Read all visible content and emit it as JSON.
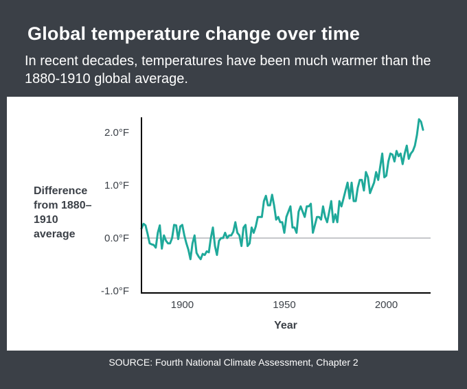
{
  "header": {
    "title": "Global temperature change over time",
    "subtitle": "In recent decades, temperatures have been much warmer than the 1880-1910 global average."
  },
  "footer": {
    "source": "SOURCE: Fourth National Climate Assessment, Chapter 2"
  },
  "colors": {
    "background": "#3b4047",
    "panel": "#ffffff",
    "line": "#1fa99a",
    "baseline": "#c5c7ca",
    "axis": "#000000"
  },
  "chart_data": {
    "type": "line",
    "ylabel": "Difference from 1880–1910 average",
    "xlabel": "Year",
    "xlim": [
      1880,
      2019
    ],
    "ylim": [
      -1.0,
      2.2
    ],
    "x_ticks": [
      {
        "value": 1900,
        "label": "1900"
      },
      {
        "value": 1950,
        "label": "1950"
      },
      {
        "value": 2000,
        "label": "2000"
      }
    ],
    "y_ticks": [
      {
        "value": 2.0,
        "label": "2.0°F"
      },
      {
        "value": 1.0,
        "label": "1.0°F"
      },
      {
        "value": 0.0,
        "label": "0.0°F"
      },
      {
        "value": -1.0,
        "label": "-1.0°F"
      }
    ],
    "baseline": 0.0,
    "grid": false,
    "series": [
      {
        "x": [
          1880,
          1881,
          1882,
          1883,
          1884,
          1885,
          1886,
          1887,
          1888,
          1889,
          1890,
          1891,
          1892,
          1893,
          1894,
          1895,
          1896,
          1897,
          1898,
          1899,
          1900,
          1901,
          1902,
          1903,
          1904,
          1905,
          1906,
          1907,
          1908,
          1909,
          1910,
          1911,
          1912,
          1913,
          1914,
          1915,
          1916,
          1917,
          1918,
          1919,
          1920,
          1921,
          1922,
          1923,
          1924,
          1925,
          1926,
          1927,
          1928,
          1929,
          1930,
          1931,
          1932,
          1933,
          1934,
          1935,
          1936,
          1937,
          1938,
          1939,
          1940,
          1941,
          1942,
          1943,
          1944,
          1945,
          1946,
          1947,
          1948,
          1949,
          1950,
          1951,
          1952,
          1953,
          1954,
          1955,
          1956,
          1957,
          1958,
          1959,
          1960,
          1961,
          1962,
          1963,
          1964,
          1965,
          1966,
          1967,
          1968,
          1969,
          1970,
          1971,
          1972,
          1973,
          1974,
          1975,
          1976,
          1977,
          1978,
          1979,
          1980,
          1981,
          1982,
          1983,
          1984,
          1985,
          1986,
          1987,
          1988,
          1989,
          1990,
          1991,
          1992,
          1993,
          1994,
          1995,
          1996,
          1997,
          1998,
          1999,
          2000,
          2001,
          2002,
          2003,
          2004,
          2005,
          2006,
          2007,
          2008,
          2009,
          2010,
          2011,
          2012,
          2013,
          2014,
          2015,
          2016,
          2017,
          2018
        ],
        "y": [
          0.18,
          0.27,
          0.24,
          0.08,
          -0.1,
          -0.12,
          -0.13,
          -0.18,
          0.1,
          0.24,
          -0.2,
          0.05,
          -0.05,
          -0.1,
          -0.1,
          0.0,
          0.25,
          0.24,
          -0.02,
          0.22,
          0.25,
          0.05,
          -0.1,
          -0.22,
          -0.4,
          -0.1,
          0.05,
          -0.28,
          -0.35,
          -0.4,
          -0.3,
          -0.32,
          -0.25,
          -0.27,
          0.0,
          0.2,
          -0.15,
          -0.32,
          -0.05,
          0.0,
          0.0,
          0.1,
          0.0,
          0.05,
          0.05,
          0.12,
          0.3,
          0.1,
          0.05,
          -0.15,
          0.2,
          0.25,
          -0.15,
          -0.1,
          0.2,
          0.1,
          0.22,
          0.4,
          0.4,
          0.4,
          0.7,
          0.8,
          0.62,
          0.62,
          0.82,
          0.62,
          0.35,
          0.4,
          0.3,
          0.3,
          0.1,
          0.4,
          0.5,
          0.6,
          0.2,
          0.2,
          0.1,
          0.5,
          0.6,
          0.5,
          0.4,
          0.6,
          0.6,
          0.65,
          0.1,
          0.25,
          0.4,
          0.4,
          0.35,
          0.6,
          0.4,
          0.3,
          0.5,
          0.7,
          0.3,
          0.45,
          0.3,
          0.7,
          0.6,
          0.75,
          0.9,
          1.05,
          0.75,
          1.05,
          0.7,
          0.7,
          0.95,
          1.1,
          1.1,
          0.9,
          1.25,
          1.15,
          0.85,
          0.95,
          1.05,
          1.25,
          1.1,
          1.35,
          1.6,
          1.15,
          1.18,
          1.45,
          1.6,
          1.58,
          1.45,
          1.65,
          1.55,
          1.6,
          1.4,
          1.6,
          1.75,
          1.5,
          1.6,
          1.65,
          1.75,
          1.95,
          2.25,
          2.2,
          2.05
        ]
      }
    ]
  }
}
